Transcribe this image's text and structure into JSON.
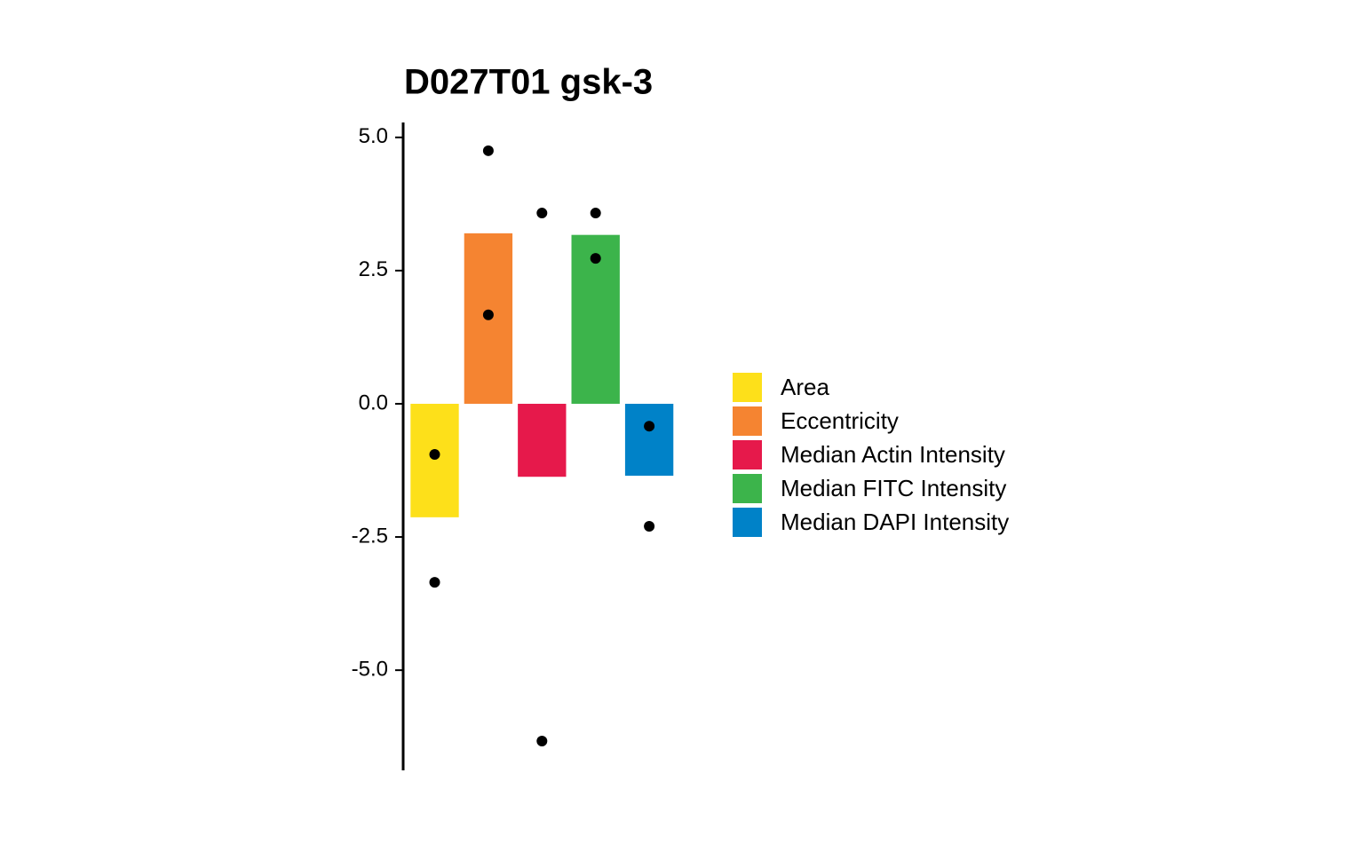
{
  "chart_data": {
    "type": "bar",
    "title": "D027T01 gsk-3",
    "categories": [
      "Area",
      "Eccentricity",
      "Median Actin Intensity",
      "Median FITC Intensity",
      "Median DAPI Intensity"
    ],
    "values": [
      -2.13,
      3.2,
      -1.37,
      3.17,
      -1.35
    ],
    "colors": [
      "#fde01a",
      "#f58431",
      "#e6194b",
      "#3cb44b",
      "#0082c8"
    ],
    "points": [
      [
        -0.95,
        -3.35
      ],
      [
        4.75,
        1.67
      ],
      [
        3.58,
        -6.33
      ],
      [
        3.58,
        2.73
      ],
      [
        -0.42,
        -2.3
      ]
    ],
    "point_color": "#000000",
    "ylim": [
      -6.88,
      5.28
    ],
    "yticks": [
      {
        "value": -5,
        "label": "-5.0"
      },
      {
        "value": -2.5,
        "label": "-2.5"
      },
      {
        "value": 0,
        "label": "0.0"
      },
      {
        "value": 2.5,
        "label": "2.5"
      },
      {
        "value": 5,
        "label": "5.0"
      }
    ],
    "legend": "right"
  }
}
